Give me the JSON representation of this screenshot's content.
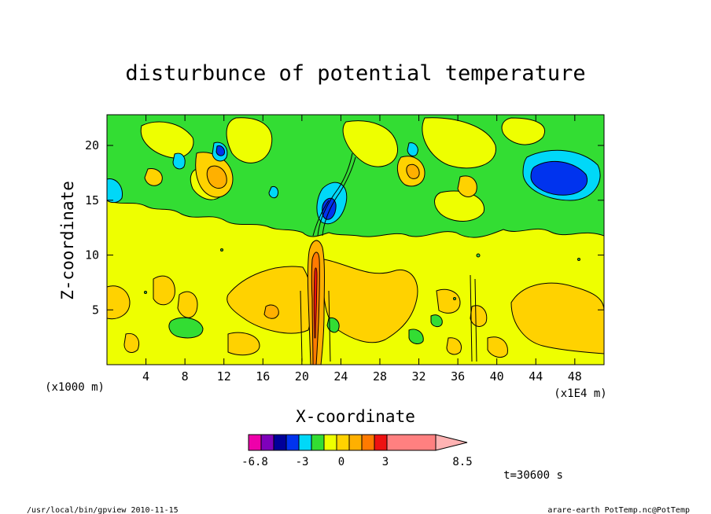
{
  "chart_data": {
    "type": "heatmap",
    "title": "disturbunce of potential temperature",
    "xlabel": "X-coordinate",
    "ylabel": "Z-coordinate",
    "x_unit_left": "(x1000 m)",
    "x_unit_right": "(x1E4 m)",
    "xlim": [
      0,
      51
    ],
    "ylim": [
      0,
      22.8
    ],
    "xticks": [
      4,
      8,
      12,
      16,
      20,
      24,
      28,
      32,
      36,
      40,
      44,
      48
    ],
    "yticks": [
      5,
      10,
      15,
      20
    ],
    "background_level": "0 to 0.75 (yellow)",
    "features": [
      {
        "kind": "positive",
        "x": 21.5,
        "z": 6,
        "w": 2,
        "h": 11,
        "level": 3
      },
      {
        "kind": "positive",
        "x": 11.5,
        "z": 17,
        "w": 1.5,
        "h": 2,
        "level": 2
      },
      {
        "kind": "positive",
        "x": 31.5,
        "z": 17.5,
        "w": 1.5,
        "h": 2,
        "level": 2
      },
      {
        "kind": "negative",
        "x": 46,
        "z": 17,
        "w": 5,
        "h": 3.5,
        "level": -3
      },
      {
        "kind": "negative",
        "x": 11.8,
        "z": 19.5,
        "w": 1,
        "h": 1.2,
        "level": -2.2
      },
      {
        "kind": "negative",
        "x": 23.5,
        "z": 14.5,
        "w": 2,
        "h": 3,
        "level": -2.2
      },
      {
        "kind": "negative",
        "x": 31,
        "z": 19.5,
        "w": 0.8,
        "h": 1.2,
        "level": -2.2
      },
      {
        "kind": "negative",
        "x": 0.7,
        "z": 16,
        "w": 1.5,
        "h": 2,
        "level": -1.5
      }
    ]
  },
  "colorbar": {
    "min_label": "-6.8",
    "labels": [
      "-6.8",
      "-3",
      "0",
      "3",
      "8.5"
    ],
    "colors": [
      "#ee00aa",
      "#7f00bb",
      "#000099",
      "#0033ee",
      "#00d8f8",
      "#33dd33",
      "#eeff00",
      "#ffd200",
      "#ffb000",
      "#ff7a00",
      "#ee1111",
      "#ff8080",
      "#ffb3b3"
    ]
  },
  "time_label": "t=30600 s",
  "footer_left": "/usr/local/bin/gpview  2010-11-15",
  "footer_right": "arare-earth_PotTemp.nc@PotTemp"
}
